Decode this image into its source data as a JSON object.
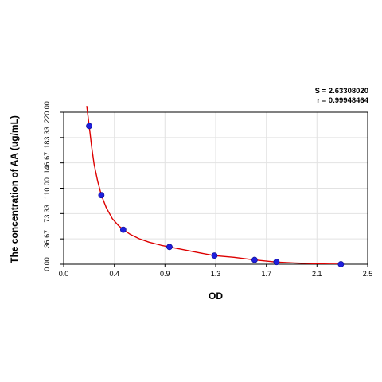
{
  "chart_data": {
    "type": "scatter",
    "title": "",
    "xlabel": "OD",
    "ylabel": "The concentration of AA (ug/mL)",
    "xlim": [
      0.0,
      2.5
    ],
    "ylim": [
      0.0,
      220.0
    ],
    "x_ticks": [
      "0.0",
      "0.4",
      "0.9",
      "1.3",
      "1.7",
      "2.1",
      "2.5"
    ],
    "x_tick_values": [
      0.0,
      0.417,
      0.833,
      1.25,
      1.667,
      2.083,
      2.5
    ],
    "y_ticks": [
      "0.00",
      "36.67",
      "73.33",
      "110.00",
      "146.67",
      "183.33",
      "220.00"
    ],
    "y_tick_values": [
      0.0,
      36.67,
      73.33,
      110.0,
      146.67,
      183.33,
      220.0
    ],
    "grid": true,
    "annotations": {
      "s_text": "S = 2.63308020",
      "r_text": "r = 0.99948464"
    },
    "series": [
      {
        "type": "scatter",
        "x": [
          0.21,
          0.31,
          0.49,
          0.87,
          1.24,
          1.57,
          1.75,
          2.28
        ],
        "y": [
          200.0,
          100.0,
          50.0,
          25.0,
          12.5,
          6.25,
          3.13,
          0.0
        ],
        "color": "#1f1fdd"
      },
      {
        "type": "line",
        "x": [
          0.19,
          0.21,
          0.23,
          0.25,
          0.28,
          0.31,
          0.35,
          0.4,
          0.45,
          0.49,
          0.55,
          0.62,
          0.7,
          0.8,
          0.87,
          1.0,
          1.1,
          1.24,
          1.4,
          1.57,
          1.75,
          1.9,
          2.05,
          2.18,
          2.3
        ],
        "y": [
          229.0,
          200.0,
          170.0,
          145.0,
          120.0,
          100.0,
          82.0,
          66.0,
          56.0,
          50.0,
          43.0,
          37.0,
          32.0,
          27.5,
          25.0,
          20.5,
          17.0,
          12.5,
          10.0,
          6.25,
          3.13,
          1.8,
          0.8,
          0.2,
          0.0
        ],
        "color": "#dd0000"
      }
    ]
  }
}
